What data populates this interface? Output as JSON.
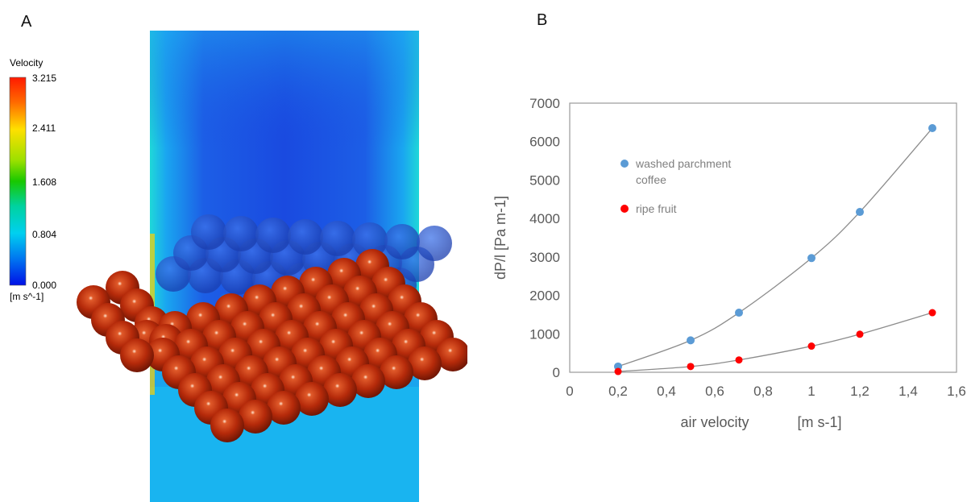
{
  "panels": {
    "a": "A",
    "b": "B"
  },
  "colorbar": {
    "title": "Velocity",
    "unit": "[m s^-1]",
    "ticks": [
      "3.215",
      "2.411",
      "1.608",
      "0.804",
      "0.000"
    ]
  },
  "colors": {
    "washed": "#5b9bd5",
    "ripe": "#ff0000",
    "sphere": "#b52a0a",
    "flow_deep": "#1a4fe0",
    "flow_base": "#19b4f0"
  },
  "chart_data": {
    "type": "scatter",
    "xlabel": "air velocity",
    "xunit": "[m s-1]",
    "ylabel": "dP/l",
    "yunit": "[Pa m-1]",
    "xlim": [
      0,
      1.6
    ],
    "ylim": [
      0,
      7000
    ],
    "xticks": [
      "0",
      "0,2",
      "0,4",
      "0,6",
      "0,8",
      "1",
      "1,2",
      "1,4",
      "1,6"
    ],
    "yticks": [
      "0",
      "1000",
      "2000",
      "3000",
      "4000",
      "5000",
      "6000",
      "7000"
    ],
    "grid": false,
    "legend_position": "upper-left",
    "series": [
      {
        "name_lines": [
          "washed parchment",
          "coffee"
        ],
        "color": "#5b9bd5",
        "x": [
          0.2,
          0.5,
          0.7,
          1.0,
          1.2,
          1.5
        ],
        "y": [
          150,
          830,
          1550,
          2970,
          4170,
          6350
        ]
      },
      {
        "name_lines": [
          "ripe fruit"
        ],
        "color": "#ff0000",
        "x": [
          0.2,
          0.5,
          0.7,
          1.0,
          1.2,
          1.5
        ],
        "y": [
          20,
          150,
          320,
          680,
          990,
          1550
        ]
      }
    ]
  }
}
